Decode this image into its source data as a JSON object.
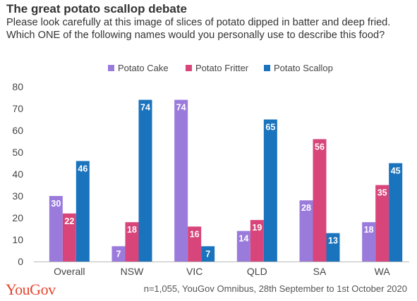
{
  "header": {
    "title": "The great potato scallop debate",
    "subtitle": "Please look carefully at this image of slices of potato dipped in batter and deep fried. Which ONE of the following names would you personally use to describe this food?"
  },
  "footer": {
    "brand": "YouGov",
    "note": "n=1,055, YouGov Omnibus, 28th September to 1st October 2020"
  },
  "chart_data": {
    "type": "bar",
    "categories": [
      "Overall",
      "NSW",
      "VIC",
      "QLD",
      "SA",
      "WA"
    ],
    "series": [
      {
        "name": "Potato Cake",
        "color": "#9a7bdc",
        "values": [
          30,
          7,
          74,
          14,
          28,
          18
        ]
      },
      {
        "name": "Potato Fritter",
        "color": "#d8457a",
        "values": [
          22,
          18,
          16,
          19,
          56,
          35
        ]
      },
      {
        "name": "Potato Scallop",
        "color": "#1a73bd",
        "values": [
          46,
          74,
          7,
          65,
          13,
          45
        ]
      }
    ],
    "labels_shown": [
      [
        true,
        true,
        true
      ],
      [
        true,
        true,
        true
      ],
      [
        true,
        true,
        true
      ],
      [
        true,
        true,
        true
      ],
      [
        true,
        true,
        true
      ],
      [
        true,
        true,
        true
      ]
    ],
    "yticks": [
      "0",
      "10",
      "20",
      "30",
      "40",
      "50",
      "60",
      "70",
      "80"
    ],
    "ylim": [
      0,
      80
    ],
    "legend_position": "top-center",
    "grid": false
  }
}
